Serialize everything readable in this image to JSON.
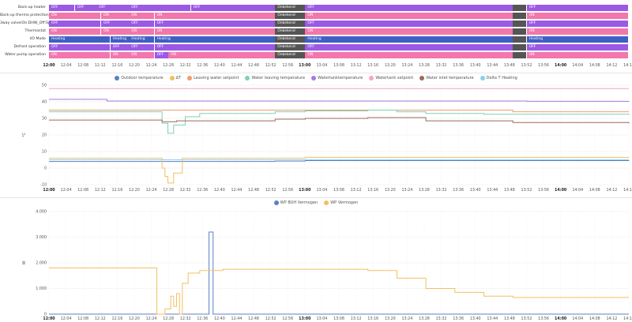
{
  "colors": {
    "off": "#9b59e6",
    "on": "#f277ad",
    "heating": "#3f5fc4",
    "unavailable": "#555555",
    "grid": "#eeeeee"
  },
  "timeline": {
    "rows": [
      {
        "label": "Back-up heater",
        "segments": [
          {
            "from": 0,
            "to": 0.45,
            "state": "off",
            "text": "OFF"
          },
          {
            "from": 0.45,
            "to": 0.82,
            "state": "off",
            "text": "OFF"
          },
          {
            "from": 0.82,
            "to": 1.38,
            "state": "off",
            "text": "OFF"
          },
          {
            "from": 1.38,
            "to": 2.45,
            "state": "off",
            "text": "OFF"
          },
          {
            "from": 2.45,
            "to": 3.9,
            "state": "off",
            "text": "OFF"
          },
          {
            "from": 3.9,
            "to": 4.42,
            "state": "unavailable",
            "text": "Onbekend"
          },
          {
            "from": 4.42,
            "to": 8.0,
            "state": "off",
            "text": "OFF"
          },
          {
            "from": 8.0,
            "to": 8.24,
            "state": "unavailable",
            "text": ""
          },
          {
            "from": 8.24,
            "to": 10.0,
            "state": "off",
            "text": "OFF"
          }
        ]
      },
      {
        "label": "Back-up thermo protection",
        "segments": [
          {
            "from": 0,
            "to": 0.9,
            "state": "on",
            "text": "ON"
          },
          {
            "from": 0.9,
            "to": 1.38,
            "state": "on",
            "text": "ON"
          },
          {
            "from": 1.38,
            "to": 1.82,
            "state": "on",
            "text": "ON"
          },
          {
            "from": 1.82,
            "to": 3.9,
            "state": "on",
            "text": "ON"
          },
          {
            "from": 3.9,
            "to": 4.42,
            "state": "unavailable",
            "text": "Onbekend"
          },
          {
            "from": 4.42,
            "to": 8.0,
            "state": "on",
            "text": "ON"
          },
          {
            "from": 8.0,
            "to": 8.24,
            "state": "unavailable",
            "text": ""
          },
          {
            "from": 8.24,
            "to": 10.0,
            "state": "on",
            "text": "ON"
          }
        ]
      },
      {
        "label": "3way valve(On:DHW_Off:Space)",
        "segments": [
          {
            "from": 0,
            "to": 0.9,
            "state": "off",
            "text": "OFF"
          },
          {
            "from": 0.9,
            "to": 1.38,
            "state": "off",
            "text": "OFF"
          },
          {
            "from": 1.38,
            "to": 1.82,
            "state": "off",
            "text": "OFF"
          },
          {
            "from": 1.82,
            "to": 3.9,
            "state": "off",
            "text": "OFF"
          },
          {
            "from": 3.9,
            "to": 4.42,
            "state": "unavailable",
            "text": "Onbekend"
          },
          {
            "from": 4.42,
            "to": 8.0,
            "state": "off",
            "text": "OFF"
          },
          {
            "from": 8.0,
            "to": 8.24,
            "state": "unavailable",
            "text": ""
          },
          {
            "from": 8.24,
            "to": 10.0,
            "state": "off",
            "text": "OFF"
          }
        ]
      },
      {
        "label": "Thermostat",
        "segments": [
          {
            "from": 0,
            "to": 0.9,
            "state": "on",
            "text": "ON"
          },
          {
            "from": 0.9,
            "to": 1.38,
            "state": "on",
            "text": "ON"
          },
          {
            "from": 1.38,
            "to": 1.82,
            "state": "on",
            "text": "ON"
          },
          {
            "from": 1.82,
            "to": 3.9,
            "state": "on",
            "text": "ON"
          },
          {
            "from": 3.9,
            "to": 4.42,
            "state": "unavailable",
            "text": "Onbekend"
          },
          {
            "from": 4.42,
            "to": 8.0,
            "state": "on",
            "text": "ON"
          },
          {
            "from": 8.0,
            "to": 8.24,
            "state": "unavailable",
            "text": ""
          },
          {
            "from": 8.24,
            "to": 10.0,
            "state": "on",
            "text": "ON"
          }
        ]
      },
      {
        "label": "I/O Mode",
        "segments": [
          {
            "from": 0,
            "to": 1.06,
            "state": "heating",
            "text": "Heating"
          },
          {
            "from": 1.06,
            "to": 1.38,
            "state": "heating",
            "text": "Heating"
          },
          {
            "from": 1.38,
            "to": 1.82,
            "state": "heating",
            "text": "Heating"
          },
          {
            "from": 1.82,
            "to": 3.9,
            "state": "heating",
            "text": "Heating"
          },
          {
            "from": 3.9,
            "to": 4.42,
            "state": "unavailable",
            "text": "Onbekend"
          },
          {
            "from": 4.42,
            "to": 8.0,
            "state": "heating",
            "text": "Heating"
          },
          {
            "from": 8.0,
            "to": 8.24,
            "state": "unavailable",
            "text": ""
          },
          {
            "from": 8.24,
            "to": 10.0,
            "state": "heating",
            "text": "Heating"
          }
        ]
      },
      {
        "label": "Defrost operation",
        "segments": [
          {
            "from": 0,
            "to": 1.06,
            "state": "off",
            "text": "OFF"
          },
          {
            "from": 1.06,
            "to": 1.38,
            "state": "off",
            "text": "OFF"
          },
          {
            "from": 1.38,
            "to": 1.82,
            "state": "off",
            "text": "OFF"
          },
          {
            "from": 1.82,
            "to": 3.9,
            "state": "off",
            "text": "OFF"
          },
          {
            "from": 3.9,
            "to": 4.42,
            "state": "unavailable",
            "text": "Onbekend"
          },
          {
            "from": 4.42,
            "to": 8.0,
            "state": "off",
            "text": "OFF"
          },
          {
            "from": 8.0,
            "to": 8.24,
            "state": "unavailable",
            "text": ""
          },
          {
            "from": 8.24,
            "to": 10.0,
            "state": "off",
            "text": "OFF"
          }
        ]
      },
      {
        "label": "Water pump operation",
        "segments": [
          {
            "from": 0,
            "to": 1.06,
            "state": "on",
            "text": "ON"
          },
          {
            "from": 1.06,
            "to": 1.38,
            "state": "on",
            "text": "ON"
          },
          {
            "from": 1.38,
            "to": 1.82,
            "state": "on",
            "text": "ON"
          },
          {
            "from": 1.82,
            "to": 2.06,
            "state": "off",
            "text": "OFF"
          },
          {
            "from": 2.06,
            "to": 3.9,
            "state": "on",
            "text": "ON"
          },
          {
            "from": 3.9,
            "to": 4.42,
            "state": "unavailable",
            "text": "Onbekend"
          },
          {
            "from": 4.42,
            "to": 8.0,
            "state": "on",
            "text": "ON"
          },
          {
            "from": 8.0,
            "to": 8.24,
            "state": "unavailable",
            "text": ""
          },
          {
            "from": 8.24,
            "to": 10.0,
            "state": "on",
            "text": "ON"
          }
        ]
      }
    ]
  },
  "time_axis": {
    "ticks": [
      "12:00",
      "12:04",
      "12:08",
      "12:12",
      "12:16",
      "12:20",
      "12:24",
      "12:28",
      "12:32",
      "12:36",
      "12:40",
      "12:44",
      "12:48",
      "12:52",
      "12:56",
      "13:00",
      "13:04",
      "13:08",
      "13:12",
      "13:16",
      "13:20",
      "13:24",
      "13:28",
      "13:32",
      "13:36",
      "13:40",
      "13:44",
      "13:48",
      "13:52",
      "13:56",
      "14:00",
      "14:04",
      "14:08",
      "14:12",
      "14:16"
    ],
    "bold_ticks": [
      "12:00",
      "13:00",
      "14:00"
    ]
  },
  "chart_data": [
    {
      "type": "line",
      "ylabel": "°C",
      "ylim": [
        -10,
        50
      ],
      "yticks": [
        "-10",
        "0",
        "10",
        "20",
        "30",
        "40",
        "50"
      ],
      "grid": true,
      "legend_position": "top",
      "series": [
        {
          "name": "Outdoor temperature",
          "color": "#5b7fc7",
          "values": [
            [
              0,
              4
            ],
            [
              3.9,
              4.2
            ],
            [
              4.42,
              4.5
            ],
            [
              8,
              4.5
            ],
            [
              8.24,
              4.5
            ],
            [
              10,
              4.4
            ]
          ]
        },
        {
          "name": "ΔT",
          "color": "#f2c062",
          "values": [
            [
              0,
              6
            ],
            [
              1.8,
              6
            ],
            [
              1.95,
              0
            ],
            [
              2.0,
              -5
            ],
            [
              2.05,
              -9
            ],
            [
              2.15,
              -3
            ],
            [
              2.3,
              6
            ],
            [
              3.9,
              6
            ],
            [
              4.42,
              6.5
            ],
            [
              8,
              6.5
            ],
            [
              8.24,
              6.5
            ],
            [
              10,
              6.4
            ]
          ]
        },
        {
          "name": "Leaving water setpoint",
          "color": "#f29b70",
          "values": [
            [
              0,
              35
            ],
            [
              3.9,
              35
            ],
            [
              4.42,
              35
            ],
            [
              8,
              34
            ],
            [
              8.24,
              34
            ],
            [
              10,
              34
            ]
          ]
        },
        {
          "name": "Water leaving temperature",
          "color": "#7fd1b0",
          "values": [
            [
              0,
              34
            ],
            [
              1.8,
              34
            ],
            [
              1.95,
              27
            ],
            [
              2.05,
              21
            ],
            [
              2.15,
              26
            ],
            [
              2.35,
              31
            ],
            [
              2.6,
              33
            ],
            [
              3.9,
              34
            ],
            [
              4.42,
              34.5
            ],
            [
              5.5,
              35
            ],
            [
              6.0,
              34
            ],
            [
              6.5,
              33
            ],
            [
              7.5,
              32.5
            ],
            [
              8,
              32.5
            ],
            [
              8.24,
              32.5
            ],
            [
              10,
              32
            ]
          ]
        },
        {
          "name": "Watertanktemperature",
          "color": "#a77ae0",
          "values": [
            [
              0,
              41.5
            ],
            [
              1,
              40.5
            ],
            [
              3.9,
              40.5
            ],
            [
              4.42,
              40.5
            ],
            [
              8,
              40.5
            ],
            [
              8.24,
              40.3
            ],
            [
              10,
              40
            ]
          ]
        },
        {
          "name": "Watertank setpoint",
          "color": "#f4a6bd",
          "values": [
            [
              0,
              48
            ],
            [
              3.9,
              48
            ],
            [
              4.42,
              48
            ],
            [
              8,
              48
            ],
            [
              8.24,
              48
            ],
            [
              10,
              48
            ]
          ]
        },
        {
          "name": "Water inlet temperature",
          "color": "#9b6a5a",
          "values": [
            [
              0,
              29
            ],
            [
              1.8,
              29
            ],
            [
              1.95,
              28
            ],
            [
              2.2,
              28.5
            ],
            [
              3.9,
              29.5
            ],
            [
              4.42,
              30
            ],
            [
              5.5,
              30.5
            ],
            [
              6.5,
              28.5
            ],
            [
              8,
              27.5
            ],
            [
              8.24,
              27.5
            ],
            [
              10,
              27
            ]
          ]
        },
        {
          "name": "Delta T Heating",
          "color": "#8ecdf0",
          "values": [
            [
              0,
              5
            ],
            [
              3.9,
              5
            ],
            [
              4.42,
              5
            ],
            [
              8,
              5
            ],
            [
              8.24,
              5
            ],
            [
              10,
              5
            ]
          ]
        }
      ]
    },
    {
      "type": "line",
      "ylabel": "W",
      "ylim": [
        0,
        4000
      ],
      "yticks": [
        "0",
        "1.000",
        "2.000",
        "3.000",
        "4.000"
      ],
      "grid": true,
      "legend_position": "top",
      "series": [
        {
          "name": "WP BUH Vermogen",
          "color": "#5b7fc7",
          "values": [
            [
              0,
              0
            ],
            [
              2.75,
              0
            ],
            [
              2.76,
              3200
            ],
            [
              2.82,
              3200
            ],
            [
              2.83,
              0
            ],
            [
              10,
              0
            ]
          ]
        },
        {
          "name": "WP Vermogen",
          "color": "#f2c062",
          "values": [
            [
              0,
              1800
            ],
            [
              1.85,
              1800
            ],
            [
              1.86,
              0
            ],
            [
              2.0,
              200
            ],
            [
              2.1,
              700
            ],
            [
              2.15,
              300
            ],
            [
              2.2,
              800
            ],
            [
              2.25,
              0
            ],
            [
              2.3,
              1200
            ],
            [
              2.4,
              1600
            ],
            [
              2.6,
              1700
            ],
            [
              3.0,
              1750
            ],
            [
              3.9,
              1750
            ],
            [
              4.42,
              1750
            ],
            [
              5.5,
              1700
            ],
            [
              6.0,
              1400
            ],
            [
              6.5,
              1000
            ],
            [
              7.0,
              850
            ],
            [
              7.5,
              700
            ],
            [
              8,
              650
            ],
            [
              8.24,
              650
            ],
            [
              10,
              650
            ]
          ]
        }
      ]
    }
  ]
}
